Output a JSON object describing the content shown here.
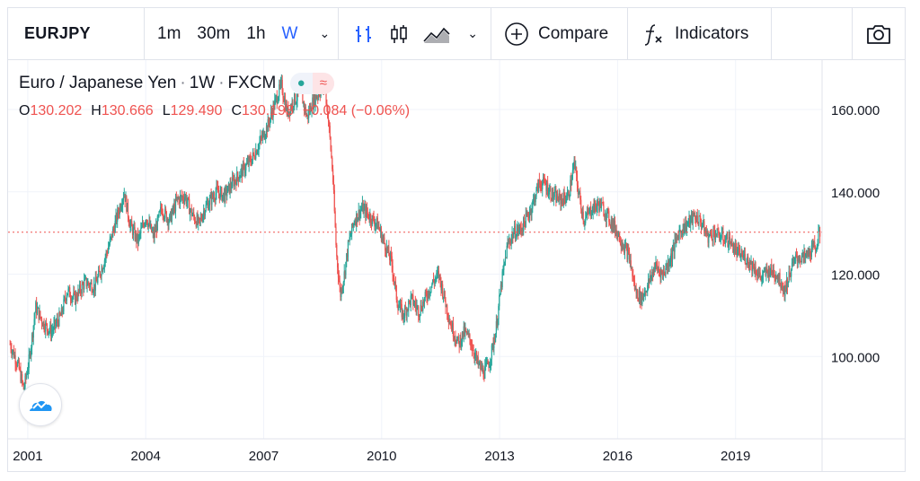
{
  "toolbar": {
    "symbol": "EURJPY",
    "intervals": [
      "1m",
      "30m",
      "1h",
      "W"
    ],
    "active_interval": "W",
    "compare_label": "Compare",
    "indicators_label": "Indicators"
  },
  "legend": {
    "name": "Euro / Japanese Yen",
    "interval": "1W",
    "source": "FXCM",
    "open_label": "O",
    "open": "130.202",
    "high_label": "H",
    "high": "130.666",
    "low_label": "L",
    "low": "129.490",
    "close_label": "C",
    "close": "130.193",
    "change": "−0.084 (−0.06%)"
  },
  "colors": {
    "up": "#26a69a",
    "down": "#ef5350",
    "accent": "#2962ff",
    "grid": "#f0f3fa"
  },
  "chart_data": {
    "type": "candlestick",
    "x_ticks": [
      "2001",
      "2004",
      "2007",
      "2010",
      "2013",
      "2016",
      "2019"
    ],
    "y_ticks": [
      "100.000",
      "120.000",
      "140.000",
      "160.000"
    ],
    "ylim": [
      80,
      172
    ],
    "xlim": [
      2000.5,
      2021.2
    ],
    "last_price": 130.193,
    "grid": true,
    "series": [
      {
        "values": [
          [
            2000.55,
            103
          ],
          [
            2000.75,
            98
          ],
          [
            2000.9,
            92
          ],
          [
            2001.05,
            100
          ],
          [
            2001.2,
            112
          ],
          [
            2001.4,
            108
          ],
          [
            2001.6,
            106
          ],
          [
            2001.85,
            110
          ],
          [
            2002.0,
            116
          ],
          [
            2002.2,
            114
          ],
          [
            2002.45,
            118
          ],
          [
            2002.7,
            117
          ],
          [
            2002.9,
            122
          ],
          [
            2003.1,
            128
          ],
          [
            2003.3,
            135
          ],
          [
            2003.45,
            140
          ],
          [
            2003.6,
            132
          ],
          [
            2003.8,
            128
          ],
          [
            2004.0,
            134
          ],
          [
            2004.2,
            129
          ],
          [
            2004.4,
            136
          ],
          [
            2004.6,
            133
          ],
          [
            2004.8,
            138
          ],
          [
            2005.0,
            139
          ],
          [
            2005.15,
            135
          ],
          [
            2005.35,
            132
          ],
          [
            2005.5,
            136
          ],
          [
            2005.8,
            140
          ],
          [
            2006.0,
            139
          ],
          [
            2006.2,
            142
          ],
          [
            2006.45,
            145
          ],
          [
            2006.7,
            148
          ],
          [
            2006.9,
            152
          ],
          [
            2007.1,
            156
          ],
          [
            2007.3,
            162
          ],
          [
            2007.45,
            166
          ],
          [
            2007.6,
            159
          ],
          [
            2007.75,
            162
          ],
          [
            2007.95,
            164
          ],
          [
            2008.1,
            158
          ],
          [
            2008.25,
            162
          ],
          [
            2008.4,
            164
          ],
          [
            2008.55,
            166
          ],
          [
            2008.65,
            157
          ],
          [
            2008.75,
            145
          ],
          [
            2008.85,
            125
          ],
          [
            2008.95,
            115
          ],
          [
            2009.05,
            120
          ],
          [
            2009.15,
            127
          ],
          [
            2009.3,
            133
          ],
          [
            2009.5,
            136
          ],
          [
            2009.7,
            134
          ],
          [
            2009.9,
            132
          ],
          [
            2010.05,
            128
          ],
          [
            2010.25,
            123
          ],
          [
            2010.4,
            113
          ],
          [
            2010.55,
            110
          ],
          [
            2010.75,
            114
          ],
          [
            2010.95,
            111
          ],
          [
            2011.1,
            114
          ],
          [
            2011.3,
            118
          ],
          [
            2011.45,
            120
          ],
          [
            2011.6,
            114
          ],
          [
            2011.75,
            108
          ],
          [
            2011.95,
            103
          ],
          [
            2012.1,
            106
          ],
          [
            2012.25,
            104
          ],
          [
            2012.45,
            98
          ],
          [
            2012.6,
            96
          ],
          [
            2012.75,
            99
          ],
          [
            2012.9,
            106
          ],
          [
            2013.05,
            118
          ],
          [
            2013.2,
            127
          ],
          [
            2013.35,
            130
          ],
          [
            2013.55,
            131
          ],
          [
            2013.8,
            136
          ],
          [
            2014.0,
            142
          ],
          [
            2014.15,
            142
          ],
          [
            2014.35,
            139
          ],
          [
            2014.55,
            138
          ],
          [
            2014.75,
            139
          ],
          [
            2014.9,
            147
          ],
          [
            2015.0,
            140
          ],
          [
            2015.15,
            133
          ],
          [
            2015.35,
            136
          ],
          [
            2015.55,
            137
          ],
          [
            2015.75,
            134
          ],
          [
            2015.95,
            131
          ],
          [
            2016.1,
            128
          ],
          [
            2016.3,
            124
          ],
          [
            2016.45,
            116
          ],
          [
            2016.6,
            114
          ],
          [
            2016.8,
            118
          ],
          [
            2016.95,
            122
          ],
          [
            2017.15,
            120
          ],
          [
            2017.35,
            124
          ],
          [
            2017.55,
            130
          ],
          [
            2017.75,
            132
          ],
          [
            2017.95,
            134
          ],
          [
            2018.1,
            133
          ],
          [
            2018.3,
            129
          ],
          [
            2018.45,
            130
          ],
          [
            2018.65,
            129
          ],
          [
            2018.85,
            128
          ],
          [
            2019.05,
            125
          ],
          [
            2019.25,
            124
          ],
          [
            2019.45,
            122
          ],
          [
            2019.65,
            119
          ],
          [
            2019.85,
            121
          ],
          [
            2020.05,
            120
          ],
          [
            2020.25,
            116
          ],
          [
            2020.4,
            121
          ],
          [
            2020.55,
            124
          ],
          [
            2020.75,
            124
          ],
          [
            2020.95,
            126
          ],
          [
            2021.05,
            127
          ],
          [
            2021.15,
            130.2
          ]
        ]
      }
    ]
  }
}
